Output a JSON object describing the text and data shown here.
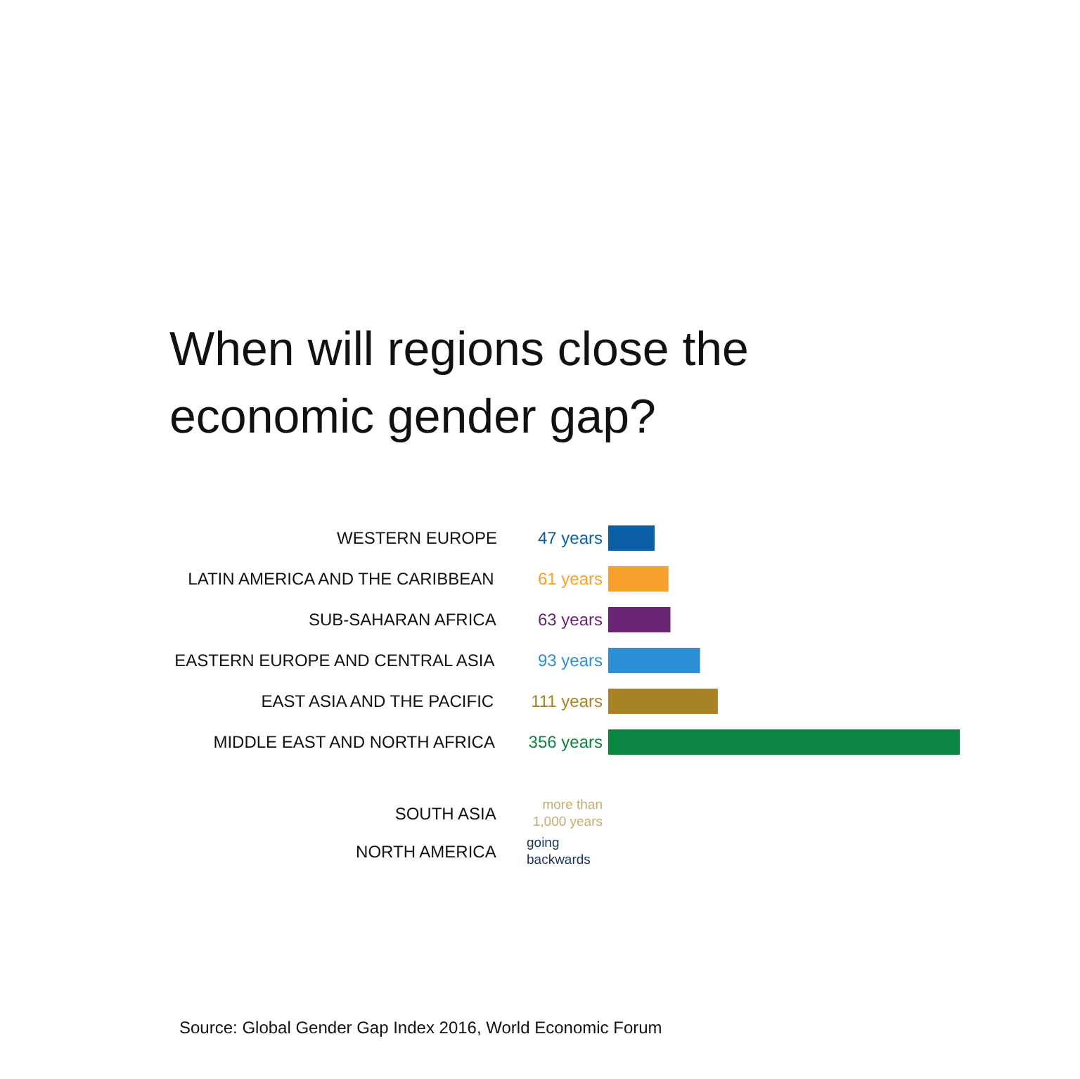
{
  "chart_data": {
    "type": "bar",
    "orientation": "horizontal",
    "title": "When will regions close the economic gender gap?",
    "categories": [
      "WESTERN EUROPE",
      "LATIN AMERICA AND THE CARIBBEAN",
      "SUB-SAHARAN AFRICA",
      "EASTERN EUROPE AND CENTRAL ASIA",
      "EAST ASIA AND THE PACIFIC",
      "MIDDLE EAST AND NORTH AFRICA",
      "SOUTH ASIA",
      "NORTH AMERICA"
    ],
    "values": [
      47,
      61,
      63,
      93,
      111,
      356,
      null,
      null
    ],
    "colors": [
      "#0a5fa5",
      "#f7a12c",
      "#6a2474",
      "#2e8fd6",
      "#a88326",
      "#0a8542",
      "#c4ad72",
      "#1e3560"
    ],
    "value_labels": [
      "47 years",
      "61 years",
      "63 years",
      "93 years",
      "111 years",
      "356 years",
      "more than 1,000 years",
      "going backwards"
    ],
    "tick_labels": "y",
    "grid": false,
    "annotations": [
      "Source:  Global Gender Gap Index 2016, World Economic Forum"
    ]
  }
}
